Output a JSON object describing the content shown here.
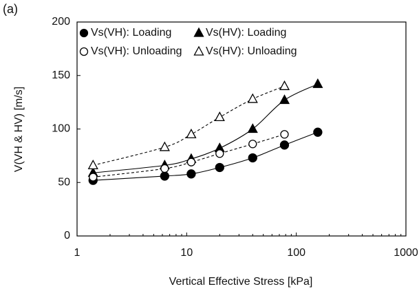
{
  "chart_data": {
    "type": "scatter",
    "panel_label": "(a)",
    "x_label": "Vertical Effective Stress [kPa]",
    "y_label": "V(VH & HV) [m/s]",
    "xscale": "log",
    "xlim": [
      1,
      1000
    ],
    "xticks": [
      1,
      10,
      100,
      1000
    ],
    "ylim": [
      0,
      200
    ],
    "yticks": [
      0,
      50,
      100,
      150,
      200
    ],
    "grid": false,
    "legend": "upper left",
    "series": [
      {
        "name": "Vs(VH): Loading",
        "color": "#000000",
        "marker": "circle",
        "filled": true,
        "line_style": "solid",
        "x": [
          1.4,
          6.3,
          11,
          20,
          40,
          78,
          157
        ],
        "values": [
          52,
          56,
          58,
          64,
          73,
          85,
          97
        ]
      },
      {
        "name": "Vs(HV): Loading",
        "color": "#000000",
        "marker": "triangle",
        "filled": true,
        "line_style": "solid",
        "x": [
          1.4,
          6.3,
          11,
          20,
          40,
          78,
          157
        ],
        "values": [
          59,
          66,
          72,
          82,
          100,
          127,
          142
        ]
      },
      {
        "name": "Vs(VH): Unloading",
        "color": "#000000",
        "marker": "circle",
        "filled": false,
        "line_style": "dashed",
        "x": [
          1.4,
          6.3,
          11,
          20,
          40,
          78
        ],
        "values": [
          55,
          63,
          69,
          77,
          86,
          95
        ]
      },
      {
        "name": "Vs(HV): Unloading",
        "color": "#000000",
        "marker": "triangle",
        "filled": false,
        "line_style": "dashed",
        "x": [
          1.4,
          6.3,
          11,
          20,
          40,
          78
        ],
        "values": [
          66,
          83,
          95,
          111,
          128,
          140
        ]
      }
    ]
  }
}
